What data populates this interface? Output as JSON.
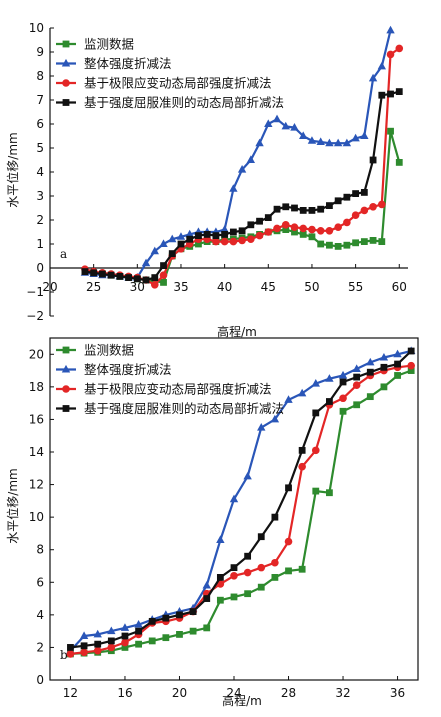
{
  "chart_data": [
    {
      "type": "line",
      "panel_label": "a",
      "xlabel": "高程/m",
      "ylabel": "水平位移/mm",
      "xlim": [
        20,
        61
      ],
      "ylim": [
        -2,
        10
      ],
      "xticks": [
        20,
        25,
        30,
        35,
        40,
        45,
        50,
        55,
        60
      ],
      "yticks": [
        -2,
        -1,
        0,
        1,
        2,
        3,
        4,
        5,
        6,
        7,
        8,
        9,
        10
      ],
      "legend_position": "top-left",
      "series": [
        {
          "name": "监测数据",
          "color": "#2e8b2e",
          "marker": "square",
          "x": [
            24,
            25,
            26,
            27,
            28,
            29,
            30,
            31,
            32,
            33,
            34,
            35,
            36,
            37,
            38,
            39,
            40,
            41,
            42,
            43,
            44,
            45,
            46,
            47,
            48,
            49,
            50,
            51,
            52,
            53,
            54,
            55,
            56,
            57,
            58,
            59,
            60
          ],
          "y": [
            -0.1,
            -0.2,
            -0.25,
            -0.3,
            -0.35,
            -0.4,
            -0.45,
            -0.5,
            -0.55,
            -0.6,
            0.5,
            0.8,
            0.9,
            1.0,
            1.1,
            1.1,
            1.2,
            1.2,
            1.25,
            1.3,
            1.4,
            1.5,
            1.55,
            1.6,
            1.5,
            1.4,
            1.3,
            1.0,
            0.95,
            0.9,
            0.95,
            1.05,
            1.1,
            1.15,
            1.1,
            5.7,
            4.4
          ]
        },
        {
          "name": "整体强度折减法",
          "color": "#2a56b8",
          "marker": "triangle",
          "x": [
            24,
            25,
            26,
            27,
            28,
            29,
            30,
            31,
            32,
            33,
            34,
            35,
            36,
            37,
            38,
            39,
            40,
            41,
            42,
            43,
            44,
            45,
            46,
            47,
            48,
            49,
            50,
            51,
            52,
            53,
            54,
            55,
            56,
            57,
            58,
            59
          ],
          "y": [
            -0.2,
            -0.25,
            -0.3,
            -0.3,
            -0.35,
            -0.4,
            -0.4,
            0.2,
            0.7,
            1.0,
            1.2,
            1.3,
            1.4,
            1.5,
            1.5,
            1.5,
            1.6,
            3.3,
            4.1,
            4.5,
            5.2,
            6.0,
            6.2,
            5.9,
            5.85,
            5.5,
            5.3,
            5.25,
            5.2,
            5.2,
            5.2,
            5.4,
            5.5,
            7.9,
            8.4,
            9.9
          ]
        },
        {
          "name": "基于极限应变动态局部强度折减法",
          "color": "#e32626",
          "marker": "circle",
          "x": [
            24,
            25,
            26,
            27,
            28,
            29,
            30,
            31,
            32,
            33,
            34,
            35,
            36,
            37,
            38,
            39,
            40,
            41,
            42,
            43,
            44,
            45,
            46,
            47,
            48,
            49,
            50,
            51,
            52,
            53,
            54,
            55,
            56,
            57,
            58,
            59,
            60
          ],
          "y": [
            -0.05,
            -0.15,
            -0.2,
            -0.25,
            -0.3,
            -0.35,
            -0.4,
            -0.5,
            -0.7,
            -0.3,
            0.5,
            0.8,
            1.0,
            1.2,
            1.2,
            1.1,
            1.1,
            1.1,
            1.15,
            1.2,
            1.35,
            1.5,
            1.65,
            1.8,
            1.7,
            1.65,
            1.6,
            1.55,
            1.55,
            1.7,
            1.9,
            2.2,
            2.4,
            2.55,
            2.65,
            8.9,
            9.15
          ]
        },
        {
          "name": "基于强度屈服准则的动态局部折减法",
          "color": "#111111",
          "marker": "square",
          "x": [
            24,
            25,
            26,
            27,
            28,
            29,
            30,
            31,
            32,
            33,
            34,
            35,
            36,
            37,
            38,
            39,
            40,
            41,
            42,
            43,
            44,
            45,
            46,
            47,
            48,
            49,
            50,
            51,
            52,
            53,
            54,
            55,
            56,
            57,
            58,
            59,
            60
          ],
          "y": [
            -0.15,
            -0.2,
            -0.25,
            -0.3,
            -0.35,
            -0.4,
            -0.45,
            -0.5,
            -0.4,
            0.1,
            0.6,
            1.0,
            1.2,
            1.35,
            1.4,
            1.35,
            1.4,
            1.5,
            1.55,
            1.8,
            1.95,
            2.1,
            2.45,
            2.55,
            2.5,
            2.4,
            2.4,
            2.45,
            2.6,
            2.8,
            2.95,
            3.1,
            3.15,
            4.5,
            7.2,
            7.25,
            7.35
          ]
        }
      ]
    },
    {
      "type": "line",
      "panel_label": "b",
      "xlabel": "高程/m",
      "ylabel": "水平位移/mm",
      "xlim": [
        10.5,
        37.5
      ],
      "ylim": [
        0,
        21
      ],
      "xticks": [
        12,
        16,
        20,
        24,
        28,
        32,
        36
      ],
      "yticks": [
        0,
        2,
        4,
        6,
        8,
        10,
        12,
        14,
        16,
        18,
        20
      ],
      "legend_position": "top-left",
      "series": [
        {
          "name": "监测数据",
          "color": "#2e8b2e",
          "marker": "square",
          "x": [
            12,
            13,
            14,
            15,
            16,
            17,
            18,
            19,
            20,
            21,
            22,
            23,
            24,
            25,
            26,
            27,
            28,
            29,
            30,
            31,
            32,
            33,
            34,
            35,
            36,
            37
          ],
          "y": [
            1.6,
            1.65,
            1.7,
            1.8,
            2.0,
            2.2,
            2.4,
            2.6,
            2.8,
            3.0,
            3.2,
            4.9,
            5.1,
            5.3,
            5.7,
            6.3,
            6.7,
            6.8,
            11.6,
            11.5,
            16.5,
            16.9,
            17.4,
            18.0,
            18.7,
            19.0
          ]
        },
        {
          "name": "整体强度折减法",
          "color": "#2a56b8",
          "marker": "triangle",
          "x": [
            12,
            13,
            14,
            15,
            16,
            17,
            18,
            19,
            20,
            21,
            22,
            23,
            24,
            25,
            26,
            27,
            28,
            29,
            30,
            31,
            32,
            33,
            34,
            35,
            36,
            37
          ],
          "y": [
            1.8,
            2.7,
            2.8,
            3.0,
            3.2,
            3.4,
            3.7,
            4.0,
            4.2,
            4.4,
            5.8,
            8.6,
            11.1,
            12.5,
            15.5,
            16.0,
            17.2,
            17.6,
            18.2,
            18.5,
            18.7,
            19.1,
            19.5,
            19.8,
            20.0,
            20.2
          ]
        },
        {
          "name": "基于极限应变动态局部强度折减法",
          "color": "#e32626",
          "marker": "circle",
          "x": [
            12,
            13,
            14,
            15,
            16,
            17,
            18,
            19,
            20,
            21,
            22,
            23,
            24,
            25,
            26,
            27,
            28,
            29,
            30,
            31,
            32,
            33,
            34,
            35,
            36,
            37
          ],
          "y": [
            1.6,
            1.7,
            1.8,
            2.0,
            2.3,
            2.8,
            3.5,
            3.6,
            3.8,
            4.2,
            5.3,
            5.9,
            6.4,
            6.6,
            6.9,
            7.2,
            8.5,
            13.1,
            14.1,
            16.9,
            17.3,
            18.1,
            18.7,
            19.0,
            19.2,
            19.3
          ]
        },
        {
          "name": "基于强度屈服准则的动态局部折减法",
          "color": "#111111",
          "marker": "square",
          "x": [
            12,
            13,
            14,
            15,
            16,
            17,
            18,
            19,
            20,
            21,
            22,
            23,
            24,
            25,
            26,
            27,
            28,
            29,
            30,
            31,
            32,
            33,
            34,
            35,
            36,
            37
          ],
          "y": [
            2.0,
            2.1,
            2.2,
            2.4,
            2.7,
            3.0,
            3.6,
            3.8,
            4.0,
            4.2,
            5.0,
            6.3,
            6.9,
            7.6,
            8.8,
            10.0,
            11.8,
            14.1,
            16.4,
            17.1,
            18.3,
            18.6,
            18.9,
            19.2,
            19.4,
            20.2
          ]
        }
      ]
    }
  ]
}
